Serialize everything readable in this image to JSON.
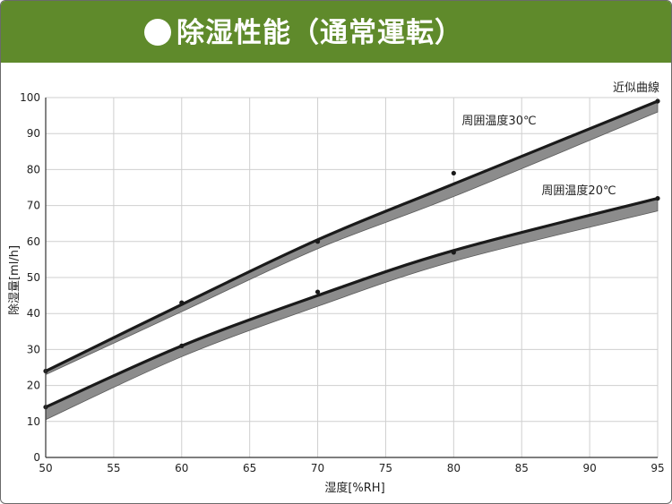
{
  "header": {
    "title": "除湿性能（通常運転）",
    "background": "#5f8a2b"
  },
  "chart_data": {
    "type": "line",
    "title": "除湿性能（通常運転）",
    "xlabel": "湿度[%RH]",
    "ylabel": "除湿量[ml/h]",
    "xlim": [
      50,
      95
    ],
    "ylim": [
      0,
      100
    ],
    "x_ticks": [
      "50",
      "55",
      "60",
      "65",
      "70",
      "75",
      "80",
      "85",
      "90",
      "95"
    ],
    "y_ticks": [
      "0",
      "10",
      "20",
      "30",
      "40",
      "50",
      "60",
      "70",
      "80",
      "90",
      "100"
    ],
    "grid": true,
    "curve_label": "近似曲線",
    "colors": {
      "curve": "#1a1a1a",
      "band": "#8c8c8c",
      "grid": "#cfcfcf",
      "axis": "#333333"
    },
    "series": [
      {
        "name": "周囲温度30℃",
        "points": [
          [
            50,
            24
          ],
          [
            60,
            43
          ],
          [
            70,
            60
          ],
          [
            80,
            79
          ],
          [
            95,
            99
          ]
        ],
        "curve": [
          [
            50,
            24
          ],
          [
            60,
            42.5
          ],
          [
            70,
            60.5
          ],
          [
            80,
            76
          ],
          [
            95,
            99
          ]
        ],
        "band_lower": [
          [
            50,
            23
          ],
          [
            60,
            40.5
          ],
          [
            70,
            58
          ],
          [
            80,
            72.5
          ],
          [
            95,
            96
          ]
        ]
      },
      {
        "name": "周囲温度20℃",
        "points": [
          [
            50,
            14
          ],
          [
            60,
            31
          ],
          [
            70,
            46
          ],
          [
            80,
            57
          ],
          [
            95,
            72
          ]
        ],
        "curve": [
          [
            50,
            14
          ],
          [
            60,
            31
          ],
          [
            70,
            45
          ],
          [
            80,
            57.5
          ],
          [
            95,
            72
          ]
        ],
        "band_lower": [
          [
            50,
            10.5
          ],
          [
            60,
            28
          ],
          [
            70,
            42
          ],
          [
            80,
            54.5
          ],
          [
            95,
            68.5
          ]
        ]
      }
    ]
  }
}
